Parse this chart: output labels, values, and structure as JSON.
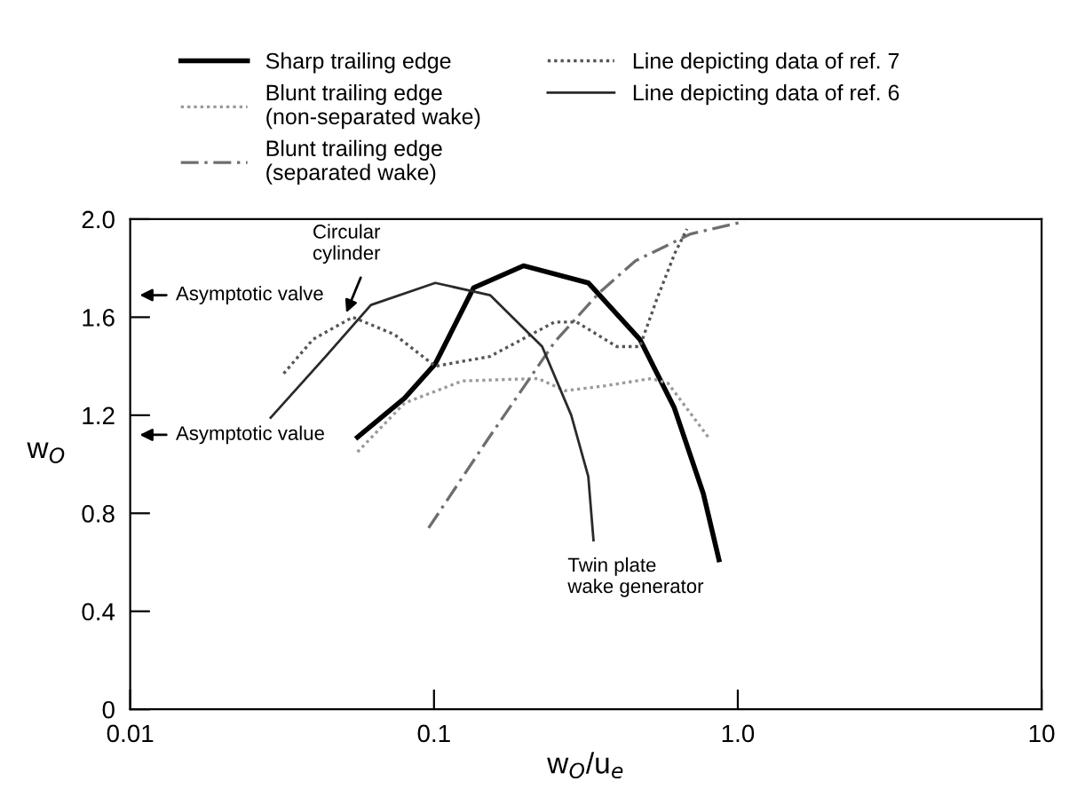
{
  "chart_data": {
    "type": "line",
    "xlabel": "w$_{O}$/u$_{e}$",
    "ylabel": "w$_{O}$",
    "log": "x",
    "xlim": [
      0.01,
      10
    ],
    "xticks": [
      0.01,
      0.1,
      {
        "value": 1,
        "label": "1.0"
      },
      10
    ],
    "ylim": [
      0,
      2.0
    ],
    "yticks": [
      0,
      0.4,
      0.8,
      1.2,
      1.6,
      {
        "value": 2,
        "label": "2.0"
      }
    ],
    "grid": false,
    "legend": "top",
    "marker": "none",
    "series": [
      {
        "name": "Sharp trailing edge",
        "color": "#000000",
        "line_style": "solid",
        "x": [
          0.056,
          0.08,
          0.101,
          0.135,
          0.197,
          0.322,
          0.476,
          0.618,
          0.77,
          0.867
        ],
        "values": [
          1.11,
          1.27,
          1.41,
          1.72,
          1.81,
          1.74,
          1.51,
          1.23,
          0.88,
          0.61
        ]
      },
      {
        "name": "Blunt trailing edge\n(non-separated wake)",
        "color": "#9a9a9a",
        "line_style": "dotted",
        "x": [
          0.056,
          0.08,
          0.124,
          0.22,
          0.27,
          0.366,
          0.52,
          0.59,
          0.8
        ],
        "values": [
          1.05,
          1.25,
          1.34,
          1.35,
          1.3,
          1.32,
          1.35,
          1.33,
          1.11
        ]
      },
      {
        "name": "Blunt trailing edge\n(separated wake)",
        "color": "#6e6e6e",
        "line_style": "dashed",
        "x": [
          0.096,
          0.15,
          0.25,
          0.35,
          0.46,
          0.7,
          1.05
        ],
        "values": [
          0.74,
          1.1,
          1.5,
          1.7,
          1.83,
          1.94,
          1.99
        ]
      },
      {
        "name": "Line depicting data of ref. 7",
        "color": "#555555",
        "line_style": "dotted",
        "x": [
          0.032,
          0.04,
          0.054,
          0.074,
          0.101,
          0.153,
          0.249,
          0.295,
          0.4,
          0.476,
          0.54,
          0.62,
          0.68
        ],
        "values": [
          1.37,
          1.51,
          1.6,
          1.53,
          1.4,
          1.44,
          1.58,
          1.58,
          1.48,
          1.48,
          1.67,
          1.86,
          1.96
        ]
      },
      {
        "name": "Line depicting data of ref. 6",
        "color": "#2a2a2a",
        "line_style": "solid",
        "x": [
          0.029,
          0.044,
          0.062,
          0.101,
          0.153,
          0.227,
          0.283,
          0.322,
          0.335
        ],
        "values": [
          1.19,
          1.44,
          1.65,
          1.74,
          1.69,
          1.48,
          1.2,
          0.95,
          0.69
        ]
      }
    ],
    "annotations": [
      "Asymptotic valve",
      "Asymptotic value",
      "Circular\ncylinder",
      "Twin plate\nwake generator"
    ]
  }
}
